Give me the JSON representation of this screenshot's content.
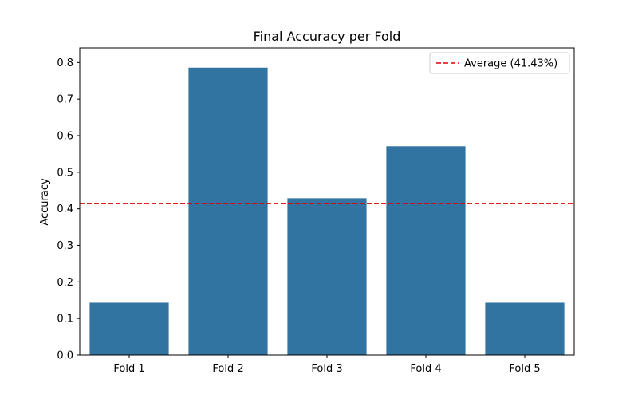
{
  "chart_data": {
    "type": "bar",
    "title": "Final Accuracy per Fold",
    "xlabel": "",
    "ylabel": "Accuracy",
    "categories": [
      "Fold 1",
      "Fold 2",
      "Fold 3",
      "Fold 4",
      "Fold 5"
    ],
    "values": [
      0.143,
      0.786,
      0.429,
      0.571,
      0.143
    ],
    "ylim": [
      0,
      0.84
    ],
    "yticks": [
      0.0,
      0.1,
      0.2,
      0.3,
      0.4,
      0.5,
      0.6,
      0.7,
      0.8
    ],
    "ytick_labels": [
      "0.0",
      "0.1",
      "0.2",
      "0.3",
      "0.4",
      "0.5",
      "0.6",
      "0.7",
      "0.8"
    ],
    "reference_line": {
      "value": 0.4143,
      "label": "Average (41.43%)",
      "color": "#e00000",
      "style": "dashed"
    },
    "bar_color": "#3274a1",
    "grid": false,
    "legend": {
      "placement": "top-right",
      "entries": [
        "Average (41.43%)"
      ]
    }
  }
}
